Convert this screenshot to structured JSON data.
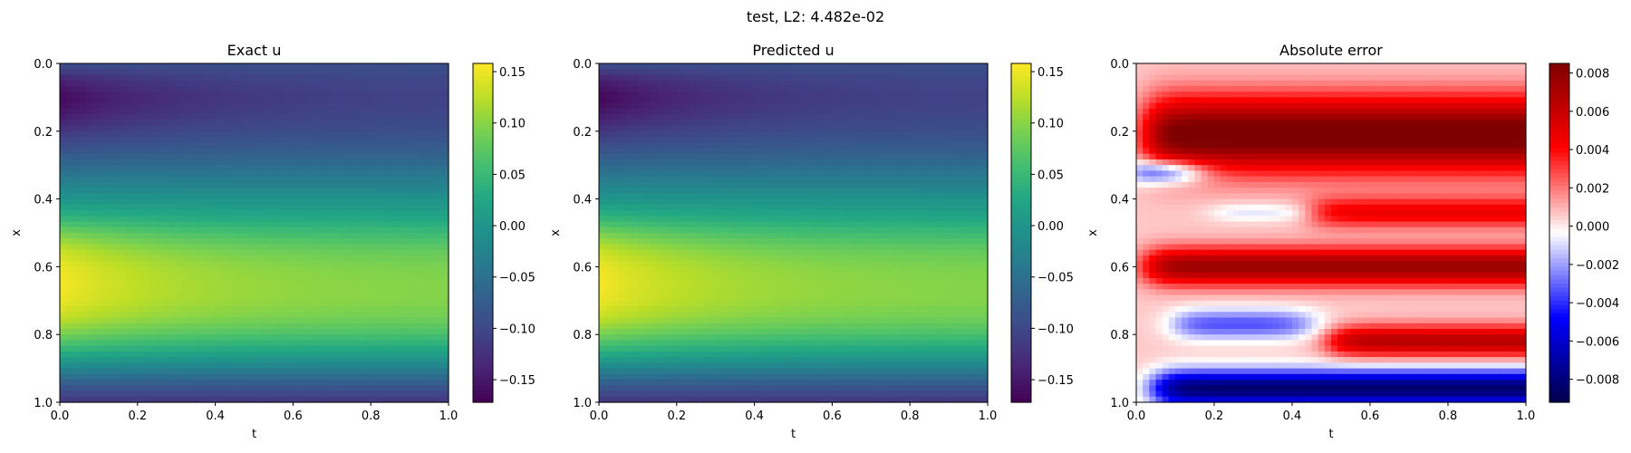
{
  "figure": {
    "suptitle": "test, L2: 4.482e-02"
  },
  "chart_data": [
    {
      "type": "heatmap",
      "title": "Exact u",
      "xlabel": "t",
      "ylabel": "x",
      "xlim": [
        0.0,
        1.0
      ],
      "ylim": [
        1.0,
        0.0
      ],
      "x_ticks": [
        "0.0",
        "0.2",
        "0.4",
        "0.6",
        "0.8",
        "1.0"
      ],
      "y_ticks": [
        "0.0",
        "0.2",
        "0.4",
        "0.6",
        "0.8",
        "1.0"
      ],
      "colormap": "viridis",
      "colorbar": {
        "min": -0.172,
        "max": 0.158,
        "ticks": [
          0.15,
          0.1,
          0.05,
          0.0,
          -0.05,
          -0.1,
          -0.15
        ],
        "tick_labels": [
          "0.15",
          "0.10",
          "0.05",
          "0.00",
          "−0.05",
          "−0.10",
          "−0.15"
        ]
      },
      "profile_x": [
        0.0,
        0.05,
        0.1,
        0.15,
        0.2,
        0.25,
        0.3,
        0.35,
        0.4,
        0.45,
        0.5,
        0.55,
        0.6,
        0.65,
        0.7,
        0.75,
        0.8,
        0.85,
        0.9,
        0.95,
        1.0
      ],
      "profile_u_at_t0": [
        -0.09,
        -0.14,
        -0.165,
        -0.15,
        -0.12,
        -0.09,
        -0.06,
        -0.03,
        0.0,
        0.04,
        0.09,
        0.13,
        0.15,
        0.155,
        0.15,
        0.13,
        0.09,
        0.04,
        -0.02,
        -0.08,
        -0.12
      ],
      "profile_u_at_t1": [
        -0.09,
        -0.1,
        -0.105,
        -0.1,
        -0.09,
        -0.075,
        -0.055,
        -0.03,
        -0.005,
        0.02,
        0.05,
        0.075,
        0.09,
        0.095,
        0.095,
        0.085,
        0.06,
        0.02,
        -0.03,
        -0.08,
        -0.12
      ]
    },
    {
      "type": "heatmap",
      "title": "Predicted u",
      "xlabel": "t",
      "ylabel": "x",
      "xlim": [
        0.0,
        1.0
      ],
      "ylim": [
        1.0,
        0.0
      ],
      "x_ticks": [
        "0.0",
        "0.2",
        "0.4",
        "0.6",
        "0.8",
        "1.0"
      ],
      "y_ticks": [
        "0.0",
        "0.2",
        "0.4",
        "0.6",
        "0.8",
        "1.0"
      ],
      "colormap": "viridis",
      "colorbar": {
        "min": -0.172,
        "max": 0.158,
        "ticks": [
          0.15,
          0.1,
          0.05,
          0.0,
          -0.05,
          -0.1,
          -0.15
        ],
        "tick_labels": [
          "0.15",
          "0.10",
          "0.05",
          "0.00",
          "−0.05",
          "−0.10",
          "−0.15"
        ]
      },
      "profile_x": [
        0.0,
        0.05,
        0.1,
        0.15,
        0.2,
        0.25,
        0.3,
        0.35,
        0.4,
        0.45,
        0.5,
        0.55,
        0.6,
        0.65,
        0.7,
        0.75,
        0.8,
        0.85,
        0.9,
        0.95,
        1.0
      ],
      "profile_u_at_t0": [
        -0.09,
        -0.145,
        -0.168,
        -0.15,
        -0.12,
        -0.09,
        -0.06,
        -0.03,
        0.0,
        0.04,
        0.09,
        0.13,
        0.15,
        0.155,
        0.15,
        0.13,
        0.09,
        0.04,
        -0.02,
        -0.08,
        -0.12
      ],
      "profile_u_at_t1": [
        -0.09,
        -0.1,
        -0.105,
        -0.1,
        -0.09,
        -0.075,
        -0.055,
        -0.03,
        -0.005,
        0.02,
        0.05,
        0.075,
        0.09,
        0.095,
        0.095,
        0.085,
        0.06,
        0.02,
        -0.03,
        -0.08,
        -0.12
      ]
    },
    {
      "type": "heatmap",
      "title": "Absolute error",
      "xlabel": "t",
      "ylabel": "x",
      "xlim": [
        0.0,
        1.0
      ],
      "ylim": [
        1.0,
        0.0
      ],
      "x_ticks": [
        "0.0",
        "0.2",
        "0.4",
        "0.6",
        "0.8",
        "1.0"
      ],
      "y_ticks": [
        "0.0",
        "0.2",
        "0.4",
        "0.6",
        "0.8",
        "1.0"
      ],
      "colormap": "seismic",
      "colorbar": {
        "min": -0.0092,
        "max": 0.0085,
        "ticks": [
          0.008,
          0.006,
          0.004,
          0.002,
          0.0,
          -0.002,
          -0.004,
          -0.006,
          -0.008
        ],
        "tick_labels": [
          "0.008",
          "0.006",
          "0.004",
          "0.002",
          "0.000",
          "−0.002",
          "−0.004",
          "−0.006",
          "−0.008"
        ]
      },
      "error_regions": [
        {
          "x_center": 0.21,
          "x_halfwidth": 0.12,
          "value": 0.0085,
          "t_start": 0.03
        },
        {
          "x_center": 0.6,
          "x_halfwidth": 0.06,
          "value": 0.007,
          "t_start": 0.03
        },
        {
          "x_center": 0.44,
          "x_halfwidth": 0.05,
          "value": 0.004,
          "t_start": 0.45
        },
        {
          "x_center": 0.82,
          "x_halfwidth": 0.05,
          "value": 0.006,
          "t_start": 0.5
        },
        {
          "x_center": 0.44,
          "x_halfwidth": 0.03,
          "value": -0.0015,
          "t_start": 0.2,
          "t_end": 0.45
        },
        {
          "x_center": 0.77,
          "x_halfwidth": 0.05,
          "value": -0.004,
          "t_start": 0.1,
          "t_end": 0.45
        },
        {
          "x_center": 0.32,
          "x_halfwidth": 0.04,
          "value": -0.006,
          "t_start": 0.0,
          "t_end": 0.15
        },
        {
          "x_center": 0.96,
          "x_halfwidth": 0.06,
          "value": -0.009,
          "t_start": 0.05
        }
      ]
    }
  ]
}
